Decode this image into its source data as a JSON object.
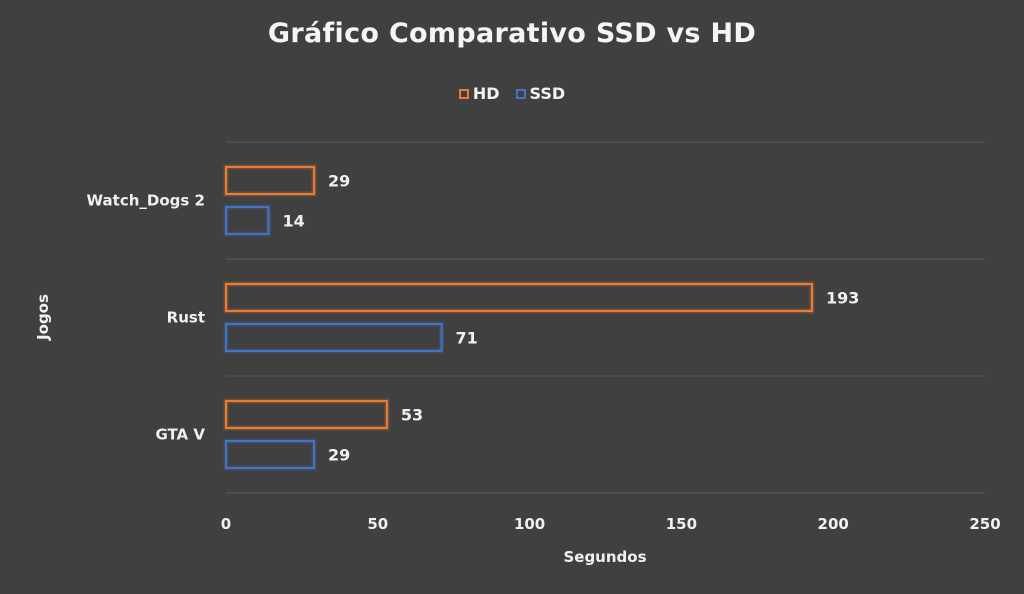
{
  "chart_data": {
    "type": "bar",
    "orientation": "horizontal",
    "title": "Gráfico Comparativo SSD vs HD",
    "xlabel": "Segundos",
    "ylabel": "Jogos",
    "xlim": [
      0,
      250
    ],
    "xticks": [
      0,
      50,
      100,
      150,
      200,
      250
    ],
    "categories": [
      "Watch_Dogs 2",
      "Rust",
      "GTA V"
    ],
    "series": [
      {
        "name": "HD",
        "values": [
          29,
          193,
          53
        ],
        "color": "#ed7d31"
      },
      {
        "name": "SSD",
        "values": [
          14,
          71,
          29
        ],
        "color": "#4472c4"
      }
    ],
    "legend_position": "top",
    "grid": true
  }
}
